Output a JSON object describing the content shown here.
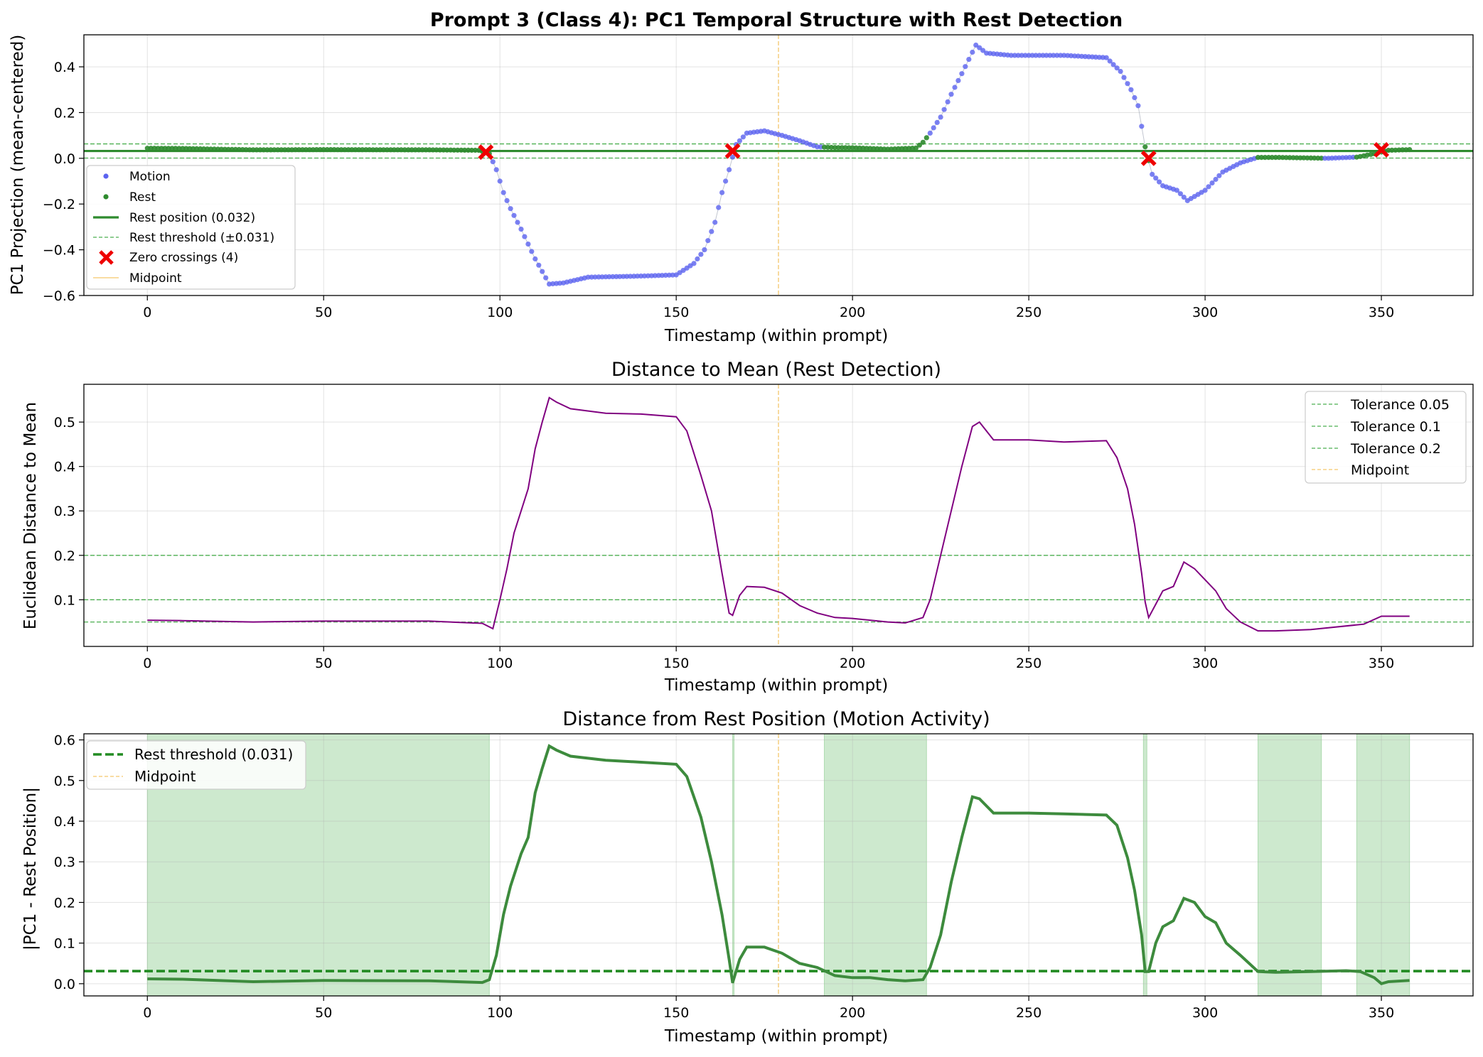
{
  "chart_data": [
    {
      "type": "scatter",
      "title": "Prompt 3 (Class 4): PC1 Temporal Structure with Rest Detection",
      "xlabel": "Timestamp (within prompt)",
      "ylabel": "PC1 Projection (mean-centered)",
      "xlim": [
        -18,
        376
      ],
      "ylim": [
        -0.6,
        0.54
      ],
      "xticks": [
        0,
        50,
        100,
        150,
        200,
        250,
        300,
        350
      ],
      "yticks": [
        -0.6,
        -0.4,
        -0.2,
        0.0,
        0.2,
        0.4
      ],
      "ytick_labels": [
        "−0.6",
        "−0.4",
        "−0.2",
        "0.0",
        "0.2",
        "0.4"
      ],
      "grid": true,
      "legend_position": "lower-left",
      "legend": [
        "Motion",
        "Rest",
        "Rest position (0.032)",
        "Rest threshold (±0.031)",
        "Zero crossings (4)",
        "Midpoint"
      ],
      "rest_position": 0.032,
      "rest_threshold": 0.031,
      "midpoint": 179,
      "rest_intervals": [
        [
          0,
          97
        ],
        [
          192,
          221
        ],
        [
          283,
          284
        ],
        [
          315,
          333
        ],
        [
          343,
          358
        ]
      ],
      "zero_crossings": {
        "x": [
          96,
          166,
          284,
          350
        ],
        "y": [
          0.027,
          0.032,
          0.0,
          0.037
        ]
      },
      "series": [
        {
          "name": "Motion",
          "x": [
            0,
            10,
            30,
            50,
            80,
            94,
            97,
            99,
            101,
            103,
            106,
            110,
            114,
            118,
            125,
            140,
            150,
            155,
            158,
            161,
            163,
            165,
            167,
            170,
            175,
            180,
            185,
            190,
            195,
            200,
            210,
            218,
            220,
            222,
            225,
            228,
            231,
            235,
            238,
            245,
            260,
            272,
            276,
            279,
            281,
            283,
            285,
            288,
            292,
            295,
            300,
            305,
            310,
            315,
            320,
            335,
            343,
            348,
            352,
            358
          ],
          "y": [
            0.044,
            0.043,
            0.037,
            0.038,
            0.037,
            0.035,
            0.02,
            -0.05,
            -0.15,
            -0.22,
            -0.31,
            -0.44,
            -0.55,
            -0.545,
            -0.52,
            -0.515,
            -0.51,
            -0.46,
            -0.4,
            -0.28,
            -0.15,
            -0.05,
            0.06,
            0.11,
            0.12,
            0.1,
            0.077,
            0.05,
            0.047,
            0.046,
            0.04,
            0.045,
            0.07,
            0.11,
            0.18,
            0.28,
            0.37,
            0.495,
            0.46,
            0.45,
            0.45,
            0.44,
            0.38,
            0.3,
            0.23,
            0.05,
            -0.07,
            -0.12,
            -0.14,
            -0.185,
            -0.14,
            -0.06,
            -0.02,
            0.004,
            0.004,
            0.0,
            0.005,
            0.02,
            0.035,
            0.038
          ]
        },
        {
          "name": "Rest",
          "x": [],
          "y": []
        }
      ]
    },
    {
      "type": "line",
      "title": "Distance to Mean (Rest Detection)",
      "xlabel": "Timestamp (within prompt)",
      "ylabel": "Euclidean Distance to Mean",
      "xlim": [
        -18,
        376
      ],
      "ylim": [
        -0.005,
        0.585
      ],
      "xticks": [
        0,
        50,
        100,
        150,
        200,
        250,
        300,
        350
      ],
      "yticks": [
        0.1,
        0.2,
        0.3,
        0.4,
        0.5
      ],
      "grid": true,
      "legend_position": "upper-right",
      "legend": [
        "Tolerance 0.05",
        "Tolerance 0.1",
        "Tolerance 0.2",
        "Midpoint"
      ],
      "tolerances": [
        0.05,
        0.1,
        0.2
      ],
      "midpoint": 179,
      "series": [
        {
          "name": "distance",
          "x": [
            0,
            10,
            30,
            50,
            80,
            95,
            98,
            100,
            102,
            104,
            106,
            108,
            110,
            112,
            114,
            116,
            120,
            130,
            140,
            150,
            153,
            155,
            157,
            160,
            163,
            165,
            166,
            168,
            170,
            175,
            180,
            185,
            190,
            195,
            200,
            210,
            215,
            220,
            222,
            225,
            228,
            231,
            234,
            236,
            240,
            250,
            260,
            272,
            275,
            278,
            280,
            282,
            283,
            284,
            286,
            288,
            291,
            294,
            297,
            300,
            303,
            306,
            310,
            315,
            320,
            330,
            345,
            350,
            358
          ],
          "y": [
            0.054,
            0.053,
            0.05,
            0.052,
            0.052,
            0.047,
            0.035,
            0.1,
            0.17,
            0.25,
            0.3,
            0.35,
            0.44,
            0.5,
            0.555,
            0.545,
            0.53,
            0.52,
            0.518,
            0.512,
            0.48,
            0.43,
            0.38,
            0.3,
            0.16,
            0.07,
            0.065,
            0.11,
            0.13,
            0.128,
            0.115,
            0.087,
            0.07,
            0.06,
            0.058,
            0.05,
            0.048,
            0.06,
            0.1,
            0.2,
            0.3,
            0.4,
            0.49,
            0.5,
            0.46,
            0.46,
            0.455,
            0.458,
            0.42,
            0.35,
            0.27,
            0.16,
            0.095,
            0.06,
            0.09,
            0.12,
            0.13,
            0.185,
            0.17,
            0.145,
            0.12,
            0.08,
            0.05,
            0.03,
            0.03,
            0.033,
            0.045,
            0.063,
            0.063
          ]
        }
      ]
    },
    {
      "type": "line",
      "title": "Distance from Rest Position (Motion Activity)",
      "xlabel": "Timestamp (within prompt)",
      "ylabel": "|PC1 - Rest Position|",
      "xlim": [
        -18,
        376
      ],
      "ylim": [
        -0.03,
        0.615
      ],
      "xticks": [
        0,
        50,
        100,
        150,
        200,
        250,
        300,
        350
      ],
      "yticks": [
        0.0,
        0.1,
        0.2,
        0.3,
        0.4,
        0.5,
        0.6
      ],
      "grid": true,
      "legend_position": "upper-left",
      "legend": [
        "Rest threshold (0.031)",
        "Midpoint"
      ],
      "rest_threshold": 0.031,
      "midpoint": 179,
      "rest_intervals": [
        [
          0,
          97
        ],
        [
          166,
          166.4
        ],
        [
          192,
          221
        ],
        [
          282.5,
          283.5
        ],
        [
          315,
          333
        ],
        [
          343,
          358
        ]
      ],
      "series": [
        {
          "name": "|PC1 - Rest Position|",
          "x": [
            0,
            10,
            30,
            50,
            80,
            95,
            97,
            99,
            101,
            103,
            106,
            108,
            110,
            112,
            114,
            116,
            120,
            130,
            140,
            150,
            153,
            155,
            157,
            160,
            163,
            165,
            166,
            168,
            170,
            175,
            180,
            185,
            190,
            195,
            200,
            205,
            210,
            215,
            220,
            222,
            225,
            228,
            231,
            234,
            236,
            240,
            250,
            260,
            272,
            275,
            278,
            280,
            282,
            283,
            284,
            286,
            288,
            291,
            294,
            297,
            300,
            303,
            306,
            310,
            315,
            320,
            330,
            340,
            344,
            348,
            350,
            352,
            358
          ],
          "y": [
            0.012,
            0.011,
            0.005,
            0.008,
            0.007,
            0.003,
            0.01,
            0.07,
            0.17,
            0.24,
            0.32,
            0.36,
            0.47,
            0.53,
            0.585,
            0.575,
            0.56,
            0.55,
            0.545,
            0.54,
            0.51,
            0.46,
            0.41,
            0.3,
            0.17,
            0.06,
            0.002,
            0.06,
            0.09,
            0.09,
            0.075,
            0.05,
            0.04,
            0.02,
            0.015,
            0.015,
            0.01,
            0.007,
            0.01,
            0.04,
            0.12,
            0.25,
            0.36,
            0.46,
            0.455,
            0.42,
            0.42,
            0.418,
            0.415,
            0.39,
            0.31,
            0.23,
            0.12,
            0.03,
            0.03,
            0.1,
            0.14,
            0.155,
            0.21,
            0.2,
            0.165,
            0.15,
            0.1,
            0.07,
            0.03,
            0.028,
            0.03,
            0.032,
            0.03,
            0.015,
            0.0,
            0.005,
            0.008
          ]
        }
      ]
    }
  ]
}
